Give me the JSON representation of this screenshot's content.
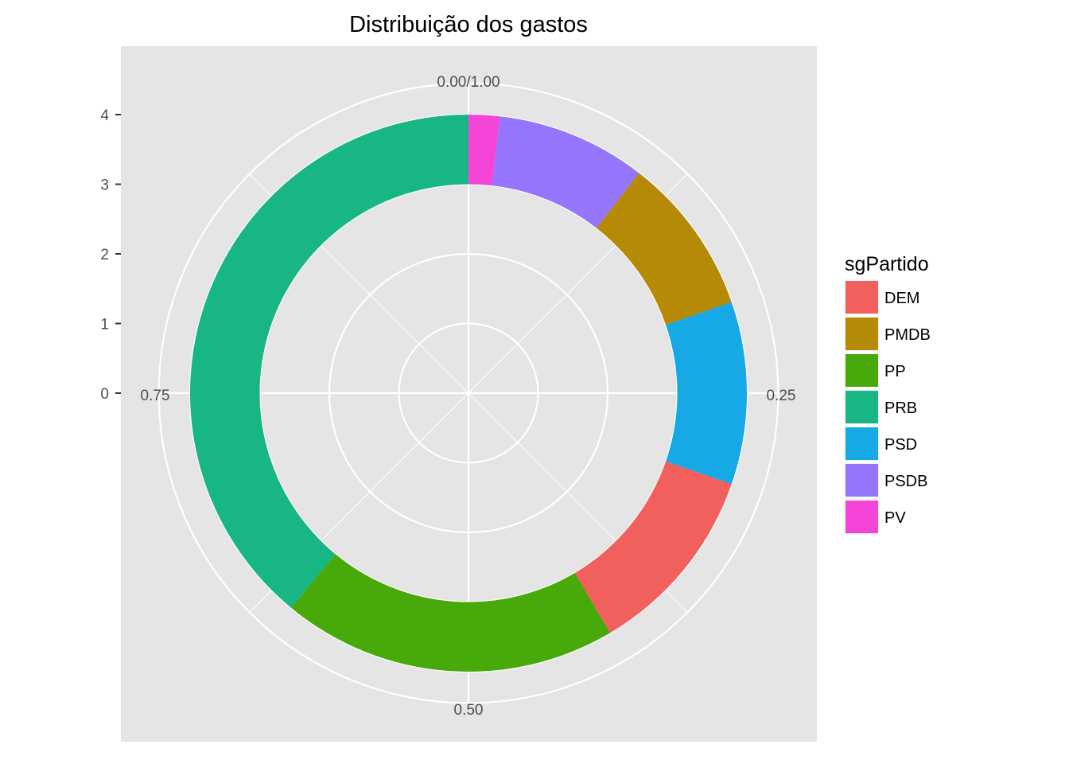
{
  "chart_data": {
    "type": "pie",
    "variant": "donut (polar coordinates)",
    "title": "Distribuição dos gastos",
    "legend_title": "sgPartido",
    "legend_position": "right",
    "categories": [
      "DEM",
      "PMDB",
      "PP",
      "PRB",
      "PSD",
      "PSDB",
      "PV"
    ],
    "colors": [
      "#F564E3",
      "#9B7FFF",
      "#17A8E6",
      "#F2605E",
      "#47A90A",
      "#19B685",
      "#B58A07"
    ],
    "stack_order": [
      "PV",
      "PSDB",
      "PMDB",
      "PSD",
      "DEM",
      "PP",
      "PRB"
    ],
    "stack_colors": [
      "#F545D8",
      "#9475FC",
      "#B48A07",
      "#17A8E6",
      "#F2605E",
      "#47A90A",
      "#19B685"
    ],
    "legend_colors": [
      "#F2605E",
      "#B48A07",
      "#47A90A",
      "#19B685",
      "#17A8E6",
      "#9475FC",
      "#F545D8"
    ],
    "values": {
      "PV": 0.018,
      "PSDB": 0.087,
      "PMDB": 0.092,
      "PSD": 0.106,
      "DEM": 0.112,
      "PP": 0.195,
      "PRB": 0.39
    },
    "angle_ticks": [
      "0.00/1.00",
      "0.25",
      "0.50",
      "0.75"
    ],
    "radial_ticks": [
      "0",
      "1",
      "2",
      "3",
      "4"
    ],
    "radial_range": [
      0,
      4
    ],
    "ring_inner": 3,
    "ring_outer": 4,
    "grid": true
  }
}
